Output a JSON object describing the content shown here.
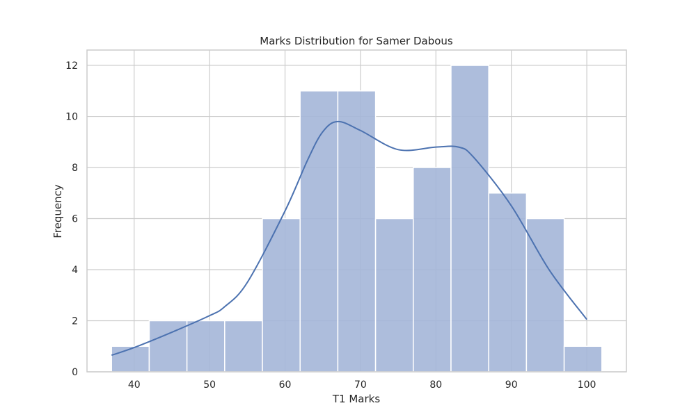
{
  "chart_data": {
    "type": "bar",
    "title": "Marks Distribution for Samer Dabous",
    "xlabel": "T1 Marks",
    "ylabel": "Frequency",
    "xlim": [
      33.75,
      105.25
    ],
    "ylim": [
      0,
      12.6
    ],
    "xticks": [
      40,
      50,
      60,
      70,
      80,
      90,
      100
    ],
    "yticks": [
      0,
      2,
      4,
      6,
      8,
      10,
      12
    ],
    "grid": true,
    "bins": [
      {
        "x0": 37,
        "x1": 42,
        "count": 1
      },
      {
        "x0": 42,
        "x1": 47,
        "count": 2
      },
      {
        "x0": 47,
        "x1": 52,
        "count": 2
      },
      {
        "x0": 52,
        "x1": 57,
        "count": 2
      },
      {
        "x0": 57,
        "x1": 62,
        "count": 6
      },
      {
        "x0": 62,
        "x1": 67,
        "count": 11
      },
      {
        "x0": 67,
        "x1": 72,
        "count": 11
      },
      {
        "x0": 72,
        "x1": 77,
        "count": 6
      },
      {
        "x0": 77,
        "x1": 82,
        "count": 8
      },
      {
        "x0": 82,
        "x1": 87,
        "count": 12
      },
      {
        "x0": 87,
        "x1": 92,
        "count": 7
      },
      {
        "x0": 92,
        "x1": 97,
        "count": 6
      },
      {
        "x0": 97,
        "x1": 102,
        "count": 1
      }
    ],
    "kde": {
      "x": [
        37,
        40,
        45,
        50,
        52,
        55,
        60,
        63,
        65,
        67,
        70,
        75,
        80,
        83,
        85,
        90,
        95,
        100
      ],
      "y": [
        0.65,
        0.95,
        1.55,
        2.2,
        2.55,
        3.5,
        6.3,
        8.3,
        9.4,
        9.8,
        9.45,
        8.7,
        8.8,
        8.8,
        8.4,
        6.5,
        4.0,
        2.05
      ]
    },
    "colors": {
      "bar_fill": "#a4b6d8",
      "bar_edge": "#ffffff",
      "kde_line": "#4c72b0",
      "grid": "#cccccc",
      "frame": "#cccccc"
    }
  }
}
